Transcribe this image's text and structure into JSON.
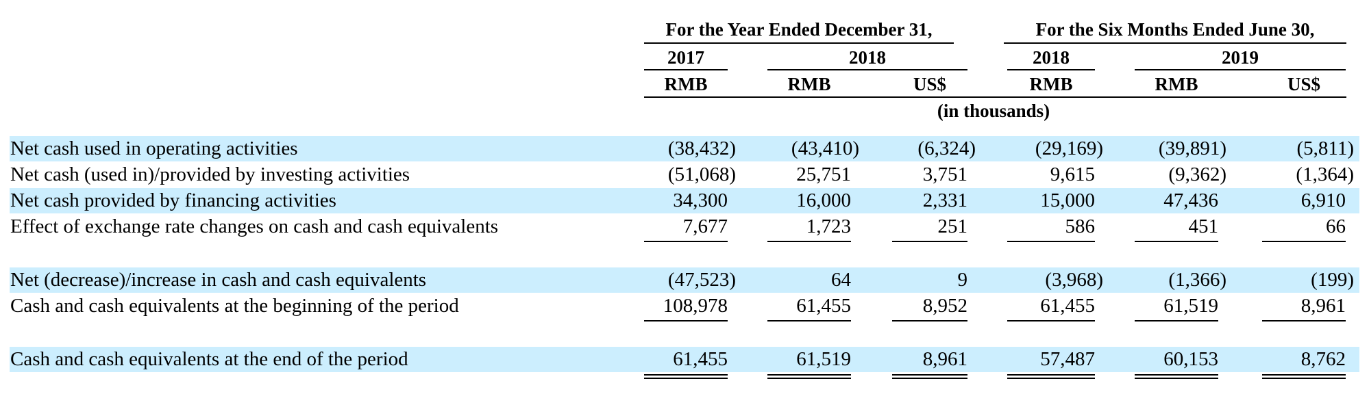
{
  "header": {
    "group_year": "For the Year Ended December 31,",
    "group_six_months": "For the Six Months Ended June 30,",
    "years": [
      "2017",
      "2018",
      "2018",
      "2019"
    ],
    "currencies": [
      "RMB",
      "RMB",
      "US$",
      "RMB",
      "RMB",
      "US$"
    ],
    "units_note": "(in thousands)"
  },
  "rows": [
    {
      "label": "Net cash used in operating activities",
      "values": [
        "(38,432)",
        "(43,410)",
        "(6,324)",
        "(29,169)",
        "(39,891)",
        "(5,811)"
      ]
    },
    {
      "label": "Net cash (used in)/provided by investing activities",
      "values": [
        "(51,068)",
        "25,751",
        "3,751",
        "9,615",
        "(9,362)",
        "(1,364)"
      ]
    },
    {
      "label": "Net cash provided by financing activities",
      "values": [
        "34,300",
        "16,000",
        "2,331",
        "15,000",
        "47,436",
        "6,910"
      ]
    },
    {
      "label": "Effect of exchange rate changes on cash and cash equivalents",
      "values": [
        "7,677",
        "1,723",
        "251",
        "586",
        "451",
        "66"
      ]
    },
    {
      "label": "Net (decrease)/increase in cash and cash equivalents",
      "values": [
        "(47,523)",
        "64",
        "9",
        "(3,968)",
        "(1,366)",
        "(199)"
      ]
    },
    {
      "label": "Cash and cash equivalents at the beginning of the period",
      "values": [
        "108,978",
        "61,455",
        "8,952",
        "61,455",
        "61,519",
        "8,961"
      ]
    },
    {
      "label": "Cash and cash equivalents at the end of the period",
      "values": [
        "61,455",
        "61,519",
        "8,961",
        "57,487",
        "60,153",
        "8,762"
      ]
    }
  ]
}
